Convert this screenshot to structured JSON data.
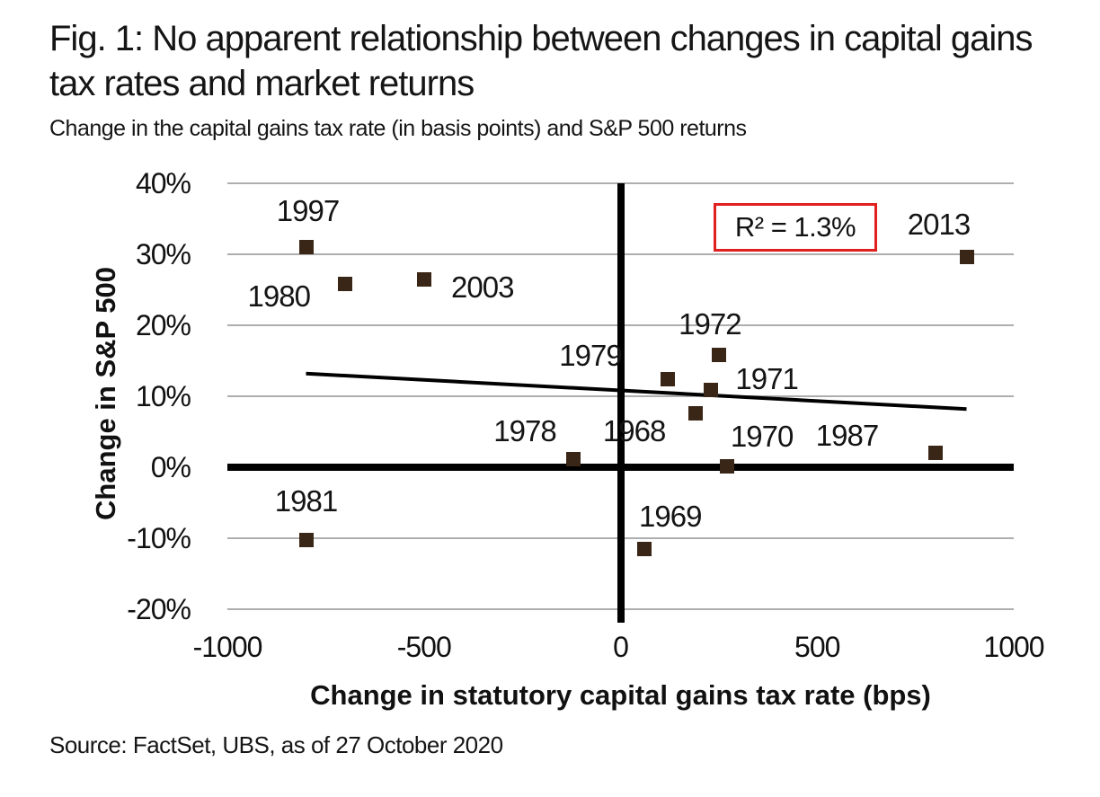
{
  "chart_data": {
    "type": "scatter",
    "title": "Fig. 1: No apparent relationship between changes in capital gains tax rates and market returns",
    "subtitle": "Change in the capital gains tax rate (in basis points) and S&P 500 returns",
    "xlabel": "Change in statutory capital gains tax rate (bps)",
    "ylabel": "Change in S&P 500",
    "source": "Source: FactSet, UBS, as of 27 October 2020",
    "annotation": "R² = 1.3%",
    "r_squared": "1.3%",
    "xlim": [
      -1000,
      1000
    ],
    "ylim": [
      -20,
      40
    ],
    "xticks": [
      -1000,
      -500,
      0,
      500,
      1000
    ],
    "yticks": [
      40,
      30,
      20,
      10,
      0,
      -10,
      -20
    ],
    "ytick_suffix": "%",
    "grid": "horizontal",
    "legend": "none",
    "marker": {
      "shape": "square",
      "size": 16,
      "color": "#3a2616"
    },
    "trendline": {
      "x1": -800,
      "y1": 13.2,
      "x2": 880,
      "y2": 8.2,
      "color": "#000000",
      "width": 4
    },
    "points": [
      {
        "label": "1997",
        "x": -800,
        "y": 31.0,
        "label_offset": [
          2,
          -40
        ]
      },
      {
        "label": "1980",
        "x": -700,
        "y": 25.8,
        "label_offset": [
          -74,
          14
        ]
      },
      {
        "label": "2003",
        "x": -500,
        "y": 26.4,
        "label_offset": [
          65,
          9
        ]
      },
      {
        "label": "1981",
        "x": -800,
        "y": -10.2,
        "label_offset": [
          0,
          -43
        ]
      },
      {
        "label": "1978",
        "x": -120,
        "y": 1.1,
        "label_offset": [
          -54,
          -31
        ]
      },
      {
        "label": "1969",
        "x": 60,
        "y": -11.5,
        "label_offset": [
          29,
          -36
        ]
      },
      {
        "label": "1979",
        "x": 120,
        "y": 12.4,
        "label_offset": [
          -86,
          -26
        ]
      },
      {
        "label": "1968",
        "x": 190,
        "y": 7.6,
        "label_offset": [
          -68,
          20
        ]
      },
      {
        "label": "1971",
        "x": 230,
        "y": 10.9,
        "label_offset": [
          62,
          -12
        ]
      },
      {
        "label": "1972",
        "x": 250,
        "y": 15.8,
        "label_offset": [
          -10,
          -34
        ]
      },
      {
        "label": "1970",
        "x": 270,
        "y": 0.1,
        "label_offset": [
          39,
          -33
        ]
      },
      {
        "label": "1987",
        "x": 800,
        "y": 2.0,
        "label_offset": [
          -98,
          -19
        ]
      },
      {
        "label": "2013",
        "x": 880,
        "y": 29.6,
        "label_offset": [
          -31,
          -36
        ]
      }
    ]
  },
  "colors": {
    "annotation_border": "#e01f1f",
    "grid": "#aeaeae",
    "axis": "#000000",
    "marker": "#3a2616",
    "text": "#1a1a1a"
  }
}
